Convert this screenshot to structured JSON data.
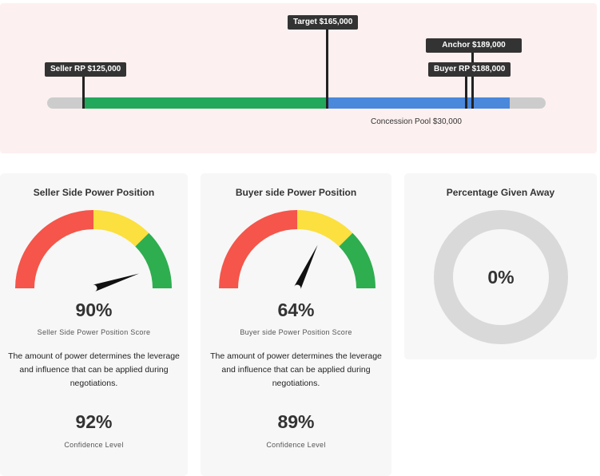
{
  "negotiation_bar": {
    "seller_rp_label": "Seller RP $125,000",
    "target_label": "Target $165,000",
    "anchor_label": "Anchor $189,000",
    "buyer_rp_label": "Buyer RP $188,000",
    "concession_pool_label": "Concession Pool $30,000",
    "colors": {
      "track": "#cccccc",
      "green": "#22a85a",
      "blue": "#4a88db",
      "marker": "#222222"
    }
  },
  "seller_card": {
    "title": "Seller Side Power Position",
    "gauge_fraction": 0.9,
    "score_value": "90%",
    "score_label": "Seller Side Power Position Score",
    "description": "The amount of power determines the leverage and influence that can be applied during negotiations.",
    "confidence_value": "92%",
    "confidence_label": "Confidence Level"
  },
  "buyer_card": {
    "title": "Buyer side Power Position",
    "gauge_fraction": 0.64,
    "score_value": "64%",
    "score_label": "Buyer side Power Position Score",
    "description": "The amount of power determines the leverage and influence that can be applied during negotiations.",
    "confidence_value": "89%",
    "confidence_label": "Confidence Level"
  },
  "percentage_card": {
    "title": "Percentage Given Away",
    "value": "0%",
    "fraction": 0
  },
  "gauge_colors": {
    "red": "#f5554a",
    "yellow": "#fbe03f",
    "green": "#2eae4f",
    "needle": "#111111"
  }
}
